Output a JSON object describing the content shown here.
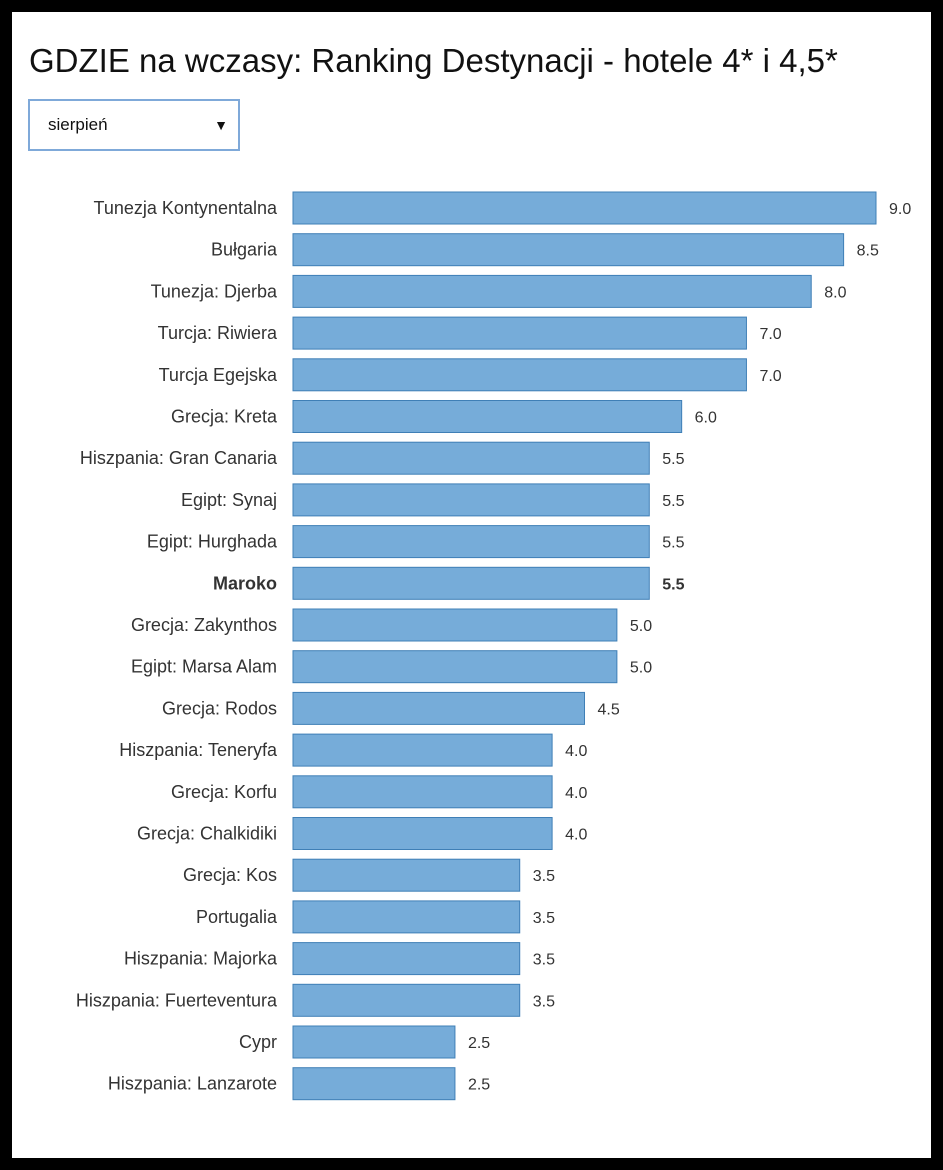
{
  "title": "GDZIE na wczasy: Ranking Destynacji - hotele 4* i 4,5*",
  "month_select": {
    "value": "sierpień",
    "arrow": "▼"
  },
  "colors": {
    "bar_fill": "#76acd9",
    "bar_stroke": "#3f7fb6",
    "text": "#333333",
    "background": "#ffffff"
  },
  "chart_data": {
    "type": "bar",
    "orientation": "horizontal",
    "categories": [
      "Tunezja Kontynentalna",
      "Bułgaria",
      "Tunezja: Djerba",
      "Turcja: Riwiera",
      "Turcja Egejska",
      "Grecja: Kreta",
      "Hiszpania: Gran Canaria",
      "Egipt: Synaj",
      "Egipt: Hurghada",
      "Maroko",
      "Grecja: Zakynthos",
      "Egipt: Marsa Alam",
      "Grecja: Rodos",
      "Hiszpania: Teneryfa",
      "Grecja: Korfu",
      "Grecja: Chalkidiki",
      "Grecja: Kos",
      "Portugalia",
      "Hiszpania: Majorka",
      "Hiszpania: Fuerteventura",
      "Cypr",
      "Hiszpania: Lanzarote"
    ],
    "values": [
      9.0,
      8.5,
      8.0,
      7.0,
      7.0,
      6.0,
      5.5,
      5.5,
      5.5,
      5.5,
      5.0,
      5.0,
      4.5,
      4.0,
      4.0,
      4.0,
      3.5,
      3.5,
      3.5,
      3.5,
      2.5,
      2.5
    ],
    "value_labels": [
      "9.0",
      "8.5",
      "8.0",
      "7.0",
      "7.0",
      "6.0",
      "5.5",
      "5.5",
      "5.5",
      "5.5",
      "5.0",
      "5.0",
      "4.5",
      "4.0",
      "4.0",
      "4.0",
      "3.5",
      "3.5",
      "3.5",
      "3.5",
      "2.5",
      "2.5"
    ],
    "highlighted_category": "Maroko",
    "xlim": [
      0,
      9.0
    ],
    "grid": false,
    "legend": "none"
  }
}
